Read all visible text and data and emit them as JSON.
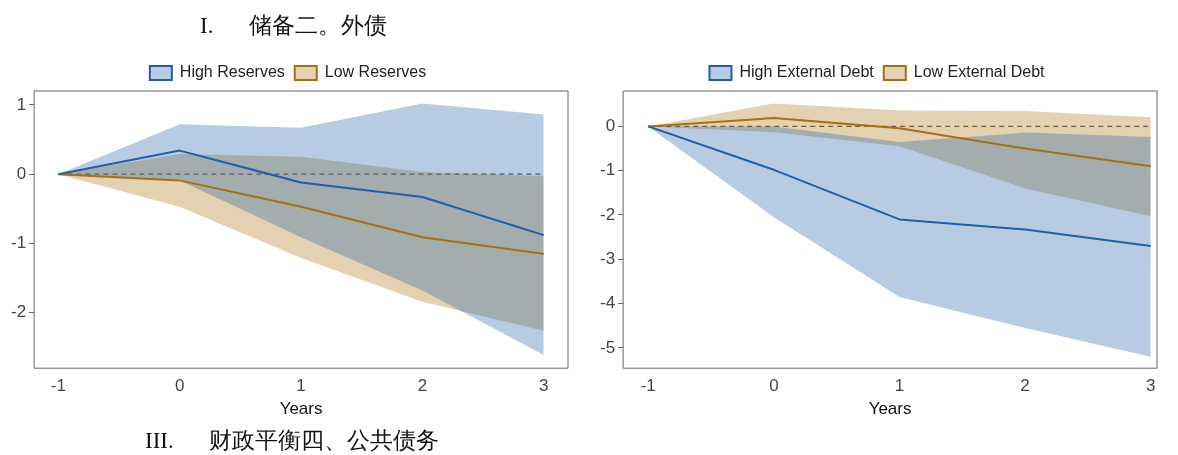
{
  "chart_data": [
    {
      "type": "line",
      "title": "I. 储备二。外债",
      "xlabel": "Years",
      "x": [
        -1,
        0,
        1,
        2,
        3
      ],
      "xlim": [
        -1.2,
        3.2
      ],
      "xticks": [
        -1,
        0,
        1,
        2,
        3
      ],
      "ylim": [
        -2.8,
        1.2
      ],
      "yticks": [
        -2,
        -1,
        0,
        1
      ],
      "grid": false,
      "legend": "top",
      "series": [
        {
          "name": "High Reserves",
          "color": "#1f5fa8",
          "values": [
            0,
            0.34,
            -0.12,
            -0.33,
            -0.88
          ],
          "lower": [
            0,
            -0.09,
            -0.91,
            -1.68,
            -2.61
          ],
          "upper": [
            0,
            0.72,
            0.67,
            1.02,
            0.86
          ]
        },
        {
          "name": "Low Reserves",
          "color": "#a86f10",
          "values": [
            0,
            -0.09,
            -0.47,
            -0.91,
            -1.15
          ],
          "lower": [
            0,
            -0.47,
            -1.21,
            -1.84,
            -2.26
          ],
          "upper": [
            0,
            0.29,
            0.25,
            0.03,
            -0.03
          ]
        }
      ],
      "ref_lines": [
        {
          "axis": "y",
          "value": 0,
          "line_style": "dashed"
        }
      ],
      "annotations": [
        "III. 财政平衡四、公共债务"
      ]
    },
    {
      "type": "line",
      "xlabel": "Years",
      "x": [
        -1,
        0,
        1,
        2,
        3
      ],
      "xlim": [
        -1.2,
        3.05
      ],
      "xticks": [
        -1,
        0,
        1,
        2,
        3
      ],
      "ylim": [
        -5.46,
        0.8
      ],
      "yticks": [
        -5,
        -4,
        -3,
        -2,
        -1,
        0
      ],
      "grid": false,
      "legend": "top",
      "series": [
        {
          "name": "High External Debt",
          "color": "#1f5fa8",
          "values": [
            0,
            -0.98,
            -2.1,
            -2.33,
            -2.7
          ],
          "lower": [
            0,
            -2.05,
            -3.85,
            -4.55,
            -5.2
          ],
          "upper": [
            0,
            0,
            -0.35,
            -0.14,
            -0.24
          ]
        },
        {
          "name": "Low External Debt",
          "color": "#a86f10",
          "values": [
            0,
            0.19,
            -0.04,
            -0.5,
            -0.9
          ],
          "lower": [
            0,
            -0.13,
            -0.45,
            -1.4,
            -2.03
          ],
          "upper": [
            0,
            0.52,
            0.36,
            0.35,
            0.21
          ]
        }
      ],
      "ref_lines": [
        {
          "axis": "y",
          "value": 0,
          "line_style": "dashed"
        }
      ]
    }
  ]
}
